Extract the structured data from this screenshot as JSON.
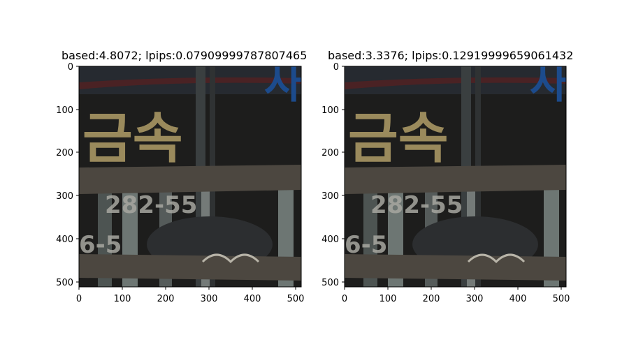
{
  "panels": [
    {
      "title": "based:4.8072; lpips:0.07909999787807465",
      "x_ticks": [
        "0",
        "100",
        "200",
        "300",
        "400",
        "500"
      ],
      "y_ticks": [
        "0",
        "100",
        "200",
        "300",
        "400",
        "500"
      ],
      "image_text": {
        "top_right_glyph": "사",
        "left_word": "금속",
        "numbers_row1": "282-55",
        "numbers_row2": "6-5"
      }
    },
    {
      "title": "based:3.3376; lpips:0.12919999659061432",
      "x_ticks": [
        "0",
        "100",
        "200",
        "300",
        "400",
        "500"
      ],
      "y_ticks": [
        "0",
        "100",
        "200",
        "300",
        "400",
        "500"
      ],
      "image_text": {
        "top_right_glyph": "사",
        "left_word": "금속",
        "numbers_row1": "282-55",
        "numbers_row2": "6-5"
      }
    }
  ],
  "axis_range": {
    "x": [
      0,
      512
    ],
    "y": [
      0,
      512
    ]
  },
  "colors": {
    "background": "#ffffff",
    "scene_dark": "#1d1d1c",
    "sign_text": "#9a8a5c",
    "wood": "#4c4740",
    "pole": "#6d7673",
    "blue_text": "#1c4b8c"
  }
}
